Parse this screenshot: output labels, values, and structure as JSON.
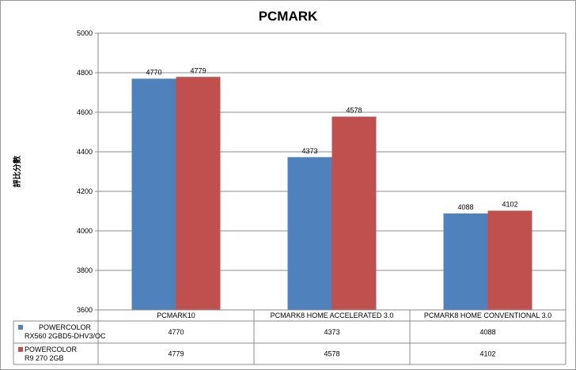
{
  "chart_data": {
    "type": "bar",
    "title": "PCMARK",
    "ylabel": "評比分數",
    "xlabel": "",
    "ylim": [
      3600,
      5000
    ],
    "yticks": [
      3600,
      3800,
      4000,
      4200,
      4400,
      4600,
      4800,
      5000
    ],
    "categories": [
      "PCMARK10",
      "PCMARK8 HOME ACCELERATED 3.0",
      "PCMARK8 HOME CONVENTIONAL 3.0"
    ],
    "series": [
      {
        "name": "POWERCOLOR RX560 2GBD5-DHV3/OC",
        "name_lines": [
          "POWERCOLOR",
          "RX560 2GBD5-DHV3/OC"
        ],
        "color": "#4f81bd",
        "values": [
          4770,
          4373,
          4088
        ]
      },
      {
        "name": "POWERCOLOR R9 270 2GB",
        "name_lines": [
          "POWERCOLOR",
          "R9 270 2GB"
        ],
        "color": "#c0504d",
        "values": [
          4779,
          4578,
          4102
        ]
      }
    ],
    "grid": true,
    "legend": "data-table"
  }
}
